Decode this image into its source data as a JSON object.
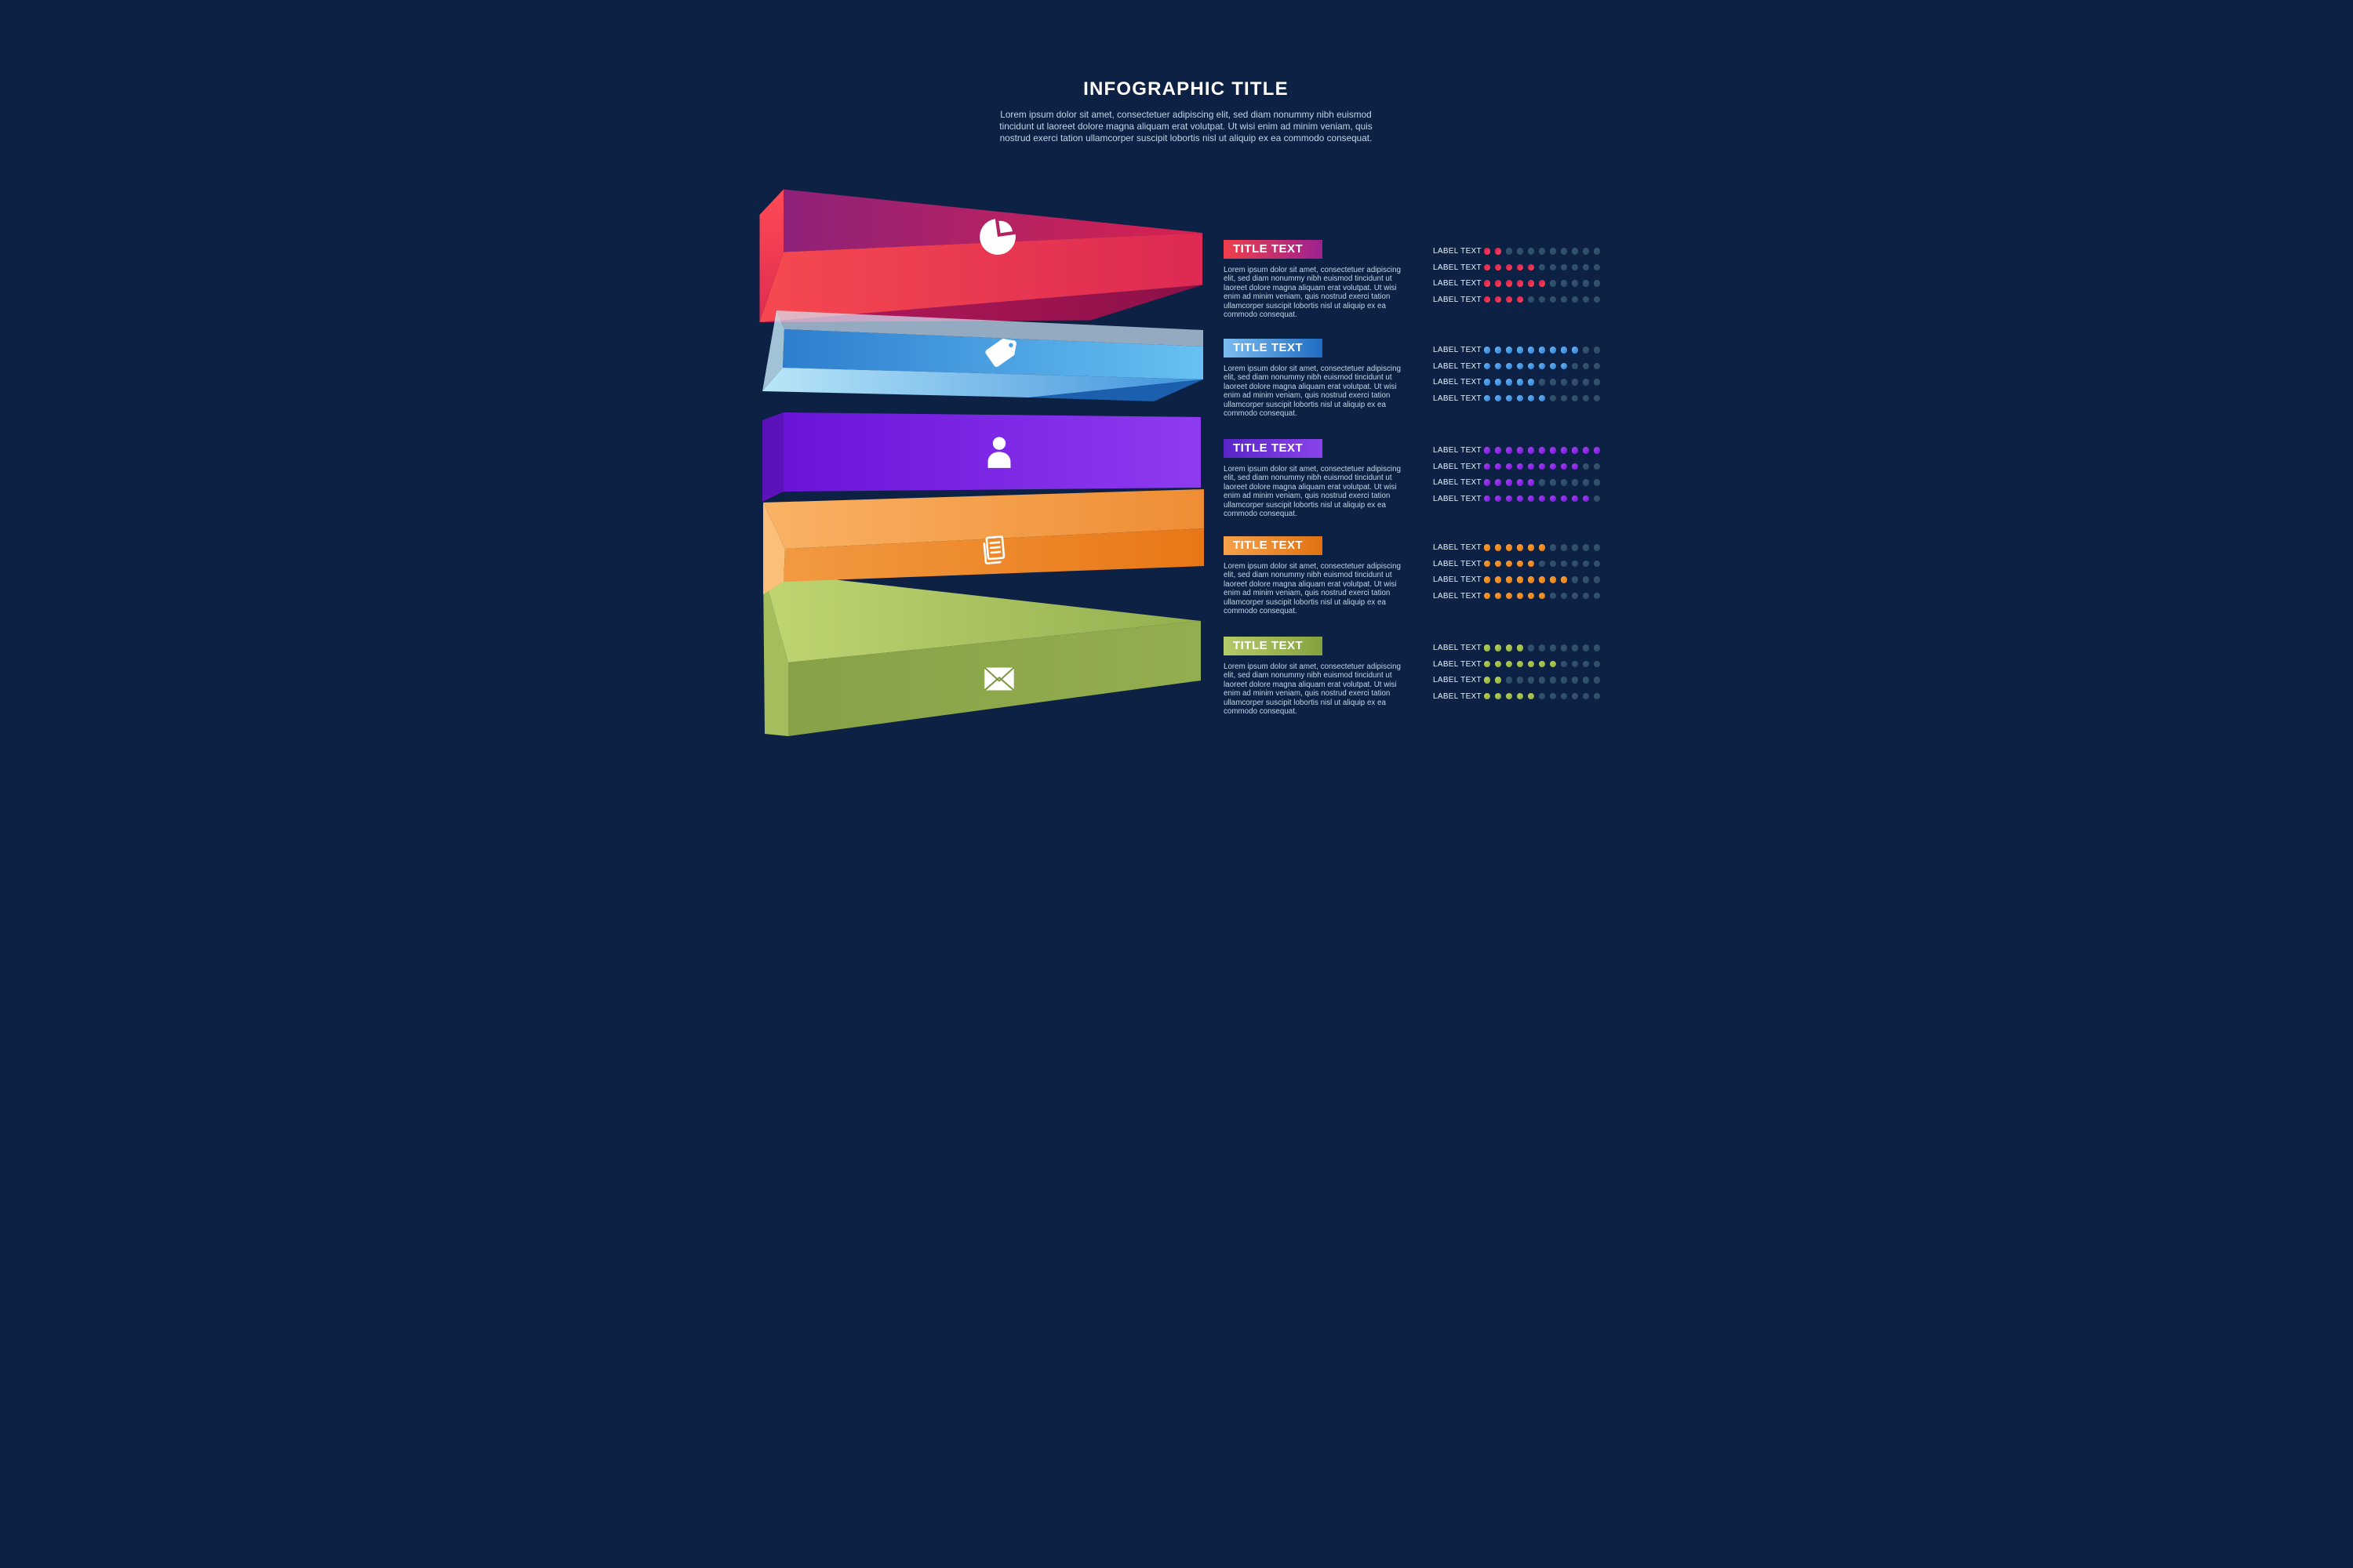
{
  "page": {
    "title": "INFOGRAPHIC TITLE",
    "intro": "Lorem ipsum dolor sit amet, consectetuer adipiscing elit, sed diam nonummy nibh euismod tincidunt ut laoreet dolore magna aliquam erat volutpat. Ut wisi enim ad minim veniam, quis nostrud exerci tation ullamcorper suscipit lobortis nisl ut aliquip ex ea commodo consequat.",
    "background_color": "#0c2144"
  },
  "dots_per_row": 11,
  "empty_dot_color": "#345571",
  "sections": [
    {
      "title_label": "TITLE TEXT",
      "description": "Lorem ipsum dolor sit amet, consectetuer adipiscing elit, sed diam nonummy nibh euismod tincidunt ut laoreet dolore magna aliquam erat volutpat. Ut wisi enim ad minim veniam, quis nostrud exerci tation ullamcorper suscipit lobortis nisl ut aliquip ex ea commodo consequat.",
      "icon": "pie-chart-icon",
      "accent_from": "#ef3f4a",
      "accent_to": "#9c2191",
      "dot_from": "#d81b52",
      "dot_to": "#fb4752",
      "rows": [
        {
          "label": "LABEL TEXT",
          "filled": 2
        },
        {
          "label": "LABEL TEXT",
          "filled": 5
        },
        {
          "label": "LABEL TEXT",
          "filled": 6
        },
        {
          "label": "LABEL TEXT",
          "filled": 4
        }
      ]
    },
    {
      "title_label": "TITLE TEXT",
      "description": "Lorem ipsum dolor sit amet, consectetuer adipiscing elit, sed diam nonummy nibh euismod tincidunt ut laoreet dolore magna aliquam erat volutpat. Ut wisi enim ad minim veniam, quis nostrud exerci tation ullamcorper suscipit lobortis nisl ut aliquip ex ea commodo consequat.",
      "icon": "tag-icon",
      "accent_from": "#7cbcf0",
      "accent_to": "#1f6dc2",
      "dot_from": "#6ab8f5",
      "dot_to": "#2f7fd6",
      "rows": [
        {
          "label": "LABEL TEXT",
          "filled": 9
        },
        {
          "label": "LABEL TEXT",
          "filled": 8
        },
        {
          "label": "LABEL TEXT",
          "filled": 5
        },
        {
          "label": "LABEL TEXT",
          "filled": 6
        }
      ]
    },
    {
      "title_label": "TITLE TEXT",
      "description": "Lorem ipsum dolor sit amet, consectetuer adipiscing elit, sed diam nonummy nibh euismod tincidunt ut laoreet dolore magna aliquam erat volutpat. Ut wisi enim ad minim veniam, quis nostrud exerci tation ullamcorper suscipit lobortis nisl ut aliquip ex ea commodo consequat.",
      "icon": "person-icon",
      "accent_from": "#5a25c8",
      "accent_to": "#8a43ea",
      "dot_from": "#a944f5",
      "dot_to": "#7517d8",
      "rows": [
        {
          "label": "LABEL TEXT",
          "filled": 11
        },
        {
          "label": "LABEL TEXT",
          "filled": 9
        },
        {
          "label": "LABEL TEXT",
          "filled": 5
        },
        {
          "label": "LABEL TEXT",
          "filled": 10
        }
      ]
    },
    {
      "title_label": "TITLE TEXT",
      "description": "Lorem ipsum dolor sit amet, consectetuer adipiscing elit, sed diam nonummy nibh euismod tincidunt ut laoreet dolore magna aliquam erat volutpat. Ut wisi enim ad minim veniam, quis nostrud exerci tation ullamcorper suscipit lobortis nisl ut aliquip ex ea commodo consequat.",
      "icon": "document-icon",
      "accent_from": "#f6a14b",
      "accent_to": "#e17210",
      "dot_from": "#f7a03c",
      "dot_to": "#ea7d12",
      "rows": [
        {
          "label": "LABEL TEXT",
          "filled": 6
        },
        {
          "label": "LABEL TEXT",
          "filled": 5
        },
        {
          "label": "LABEL TEXT",
          "filled": 8
        },
        {
          "label": "LABEL TEXT",
          "filled": 6
        }
      ]
    },
    {
      "title_label": "TITLE TEXT",
      "description": "Lorem ipsum dolor sit amet, consectetuer adipiscing elit, sed diam nonummy nibh euismod tincidunt ut laoreet dolore magna aliquam erat volutpat. Ut wisi enim ad minim veniam, quis nostrud exerci tation ullamcorper suscipit lobortis nisl ut aliquip ex ea commodo consequat.",
      "icon": "envelope-icon",
      "accent_from": "#b5ca69",
      "accent_to": "#85a23f",
      "dot_from": "#bcd25e",
      "dot_to": "#8fb03c",
      "rows": [
        {
          "label": "LABEL TEXT",
          "filled": 4
        },
        {
          "label": "LABEL TEXT",
          "filled": 7
        },
        {
          "label": "LABEL TEXT",
          "filled": 2
        },
        {
          "label": "LABEL TEXT",
          "filled": 5
        }
      ]
    }
  ]
}
